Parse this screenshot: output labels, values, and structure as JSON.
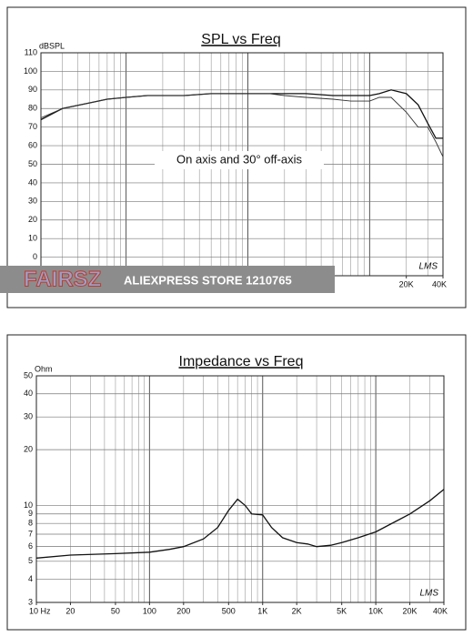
{
  "chart_data": [
    {
      "type": "line",
      "title": "SPL vs Freq",
      "ylabel": "dBSPL",
      "annotation": "On axis and 30° off-axis",
      "logo": "LMS",
      "x": [
        20,
        30,
        50,
        70,
        100,
        150,
        200,
        300,
        500,
        700,
        1000,
        1500,
        2000,
        3000,
        5000,
        7000,
        10000,
        12000,
        15000,
        20000,
        25000,
        30000,
        35000,
        40000
      ],
      "series": [
        {
          "color": "#111111",
          "values": [
            74,
            80,
            83,
            85,
            86,
            87,
            87,
            87,
            88,
            88,
            88,
            88,
            88,
            88,
            87,
            87,
            87,
            88,
            90,
            88,
            82,
            72,
            64,
            64
          ]
        },
        {
          "color": "#333333",
          "values": [
            75,
            80,
            83,
            85,
            86,
            87,
            87,
            87,
            88,
            88,
            88,
            88,
            87,
            86,
            85,
            84,
            84,
            86,
            86,
            78,
            70,
            70,
            62,
            54
          ]
        }
      ],
      "xlim": [
        20,
        40000
      ],
      "xlog": true,
      "ylim": [
        -10,
        110
      ],
      "ylog": false,
      "xticks": [
        {
          "value": 20000,
          "label": "20K"
        },
        {
          "value": 40000,
          "label": "40K"
        }
      ],
      "yticks": [
        0,
        10,
        20,
        30,
        40,
        50,
        60,
        70,
        80,
        90,
        100,
        110
      ],
      "grid": true
    },
    {
      "type": "line",
      "title": "Impedance vs Freq",
      "ylabel": "Ohm",
      "logo": "LMS",
      "x": [
        10,
        20,
        50,
        100,
        150,
        200,
        300,
        400,
        500,
        600,
        700,
        800,
        1000,
        1200,
        1500,
        2000,
        2500,
        3000,
        4000,
        5000,
        7000,
        10000,
        15000,
        20000,
        30000,
        40000
      ],
      "series": [
        {
          "color": "#111111",
          "values": [
            5.2,
            5.4,
            5.5,
            5.6,
            5.8,
            6.0,
            6.6,
            7.6,
            9.4,
            10.8,
            10.0,
            9.0,
            8.9,
            7.6,
            6.7,
            6.3,
            6.2,
            6.0,
            6.1,
            6.3,
            6.7,
            7.2,
            8.2,
            9.0,
            10.6,
            12.2
          ]
        }
      ],
      "xlim": [
        10,
        40000
      ],
      "xlog": true,
      "ylim": [
        3,
        50
      ],
      "ylog": true,
      "xticks": [
        {
          "value": 10,
          "label": "10 Hz"
        },
        20,
        50,
        100,
        200,
        500,
        {
          "value": 1000,
          "label": "1K"
        },
        {
          "value": 2000,
          "label": "2K"
        },
        {
          "value": 5000,
          "label": "5K"
        },
        {
          "value": 10000,
          "label": "10K"
        },
        {
          "value": 20000,
          "label": "20K"
        },
        {
          "value": 40000,
          "label": "40K"
        }
      ],
      "yticks": [
        3,
        4,
        5,
        6,
        7,
        8,
        9,
        10,
        20,
        30,
        40,
        50
      ],
      "grid": true
    }
  ],
  "watermark": {
    "brand": "FAIRSZ",
    "text": "ALIEXPRESS STORE 1210765"
  }
}
